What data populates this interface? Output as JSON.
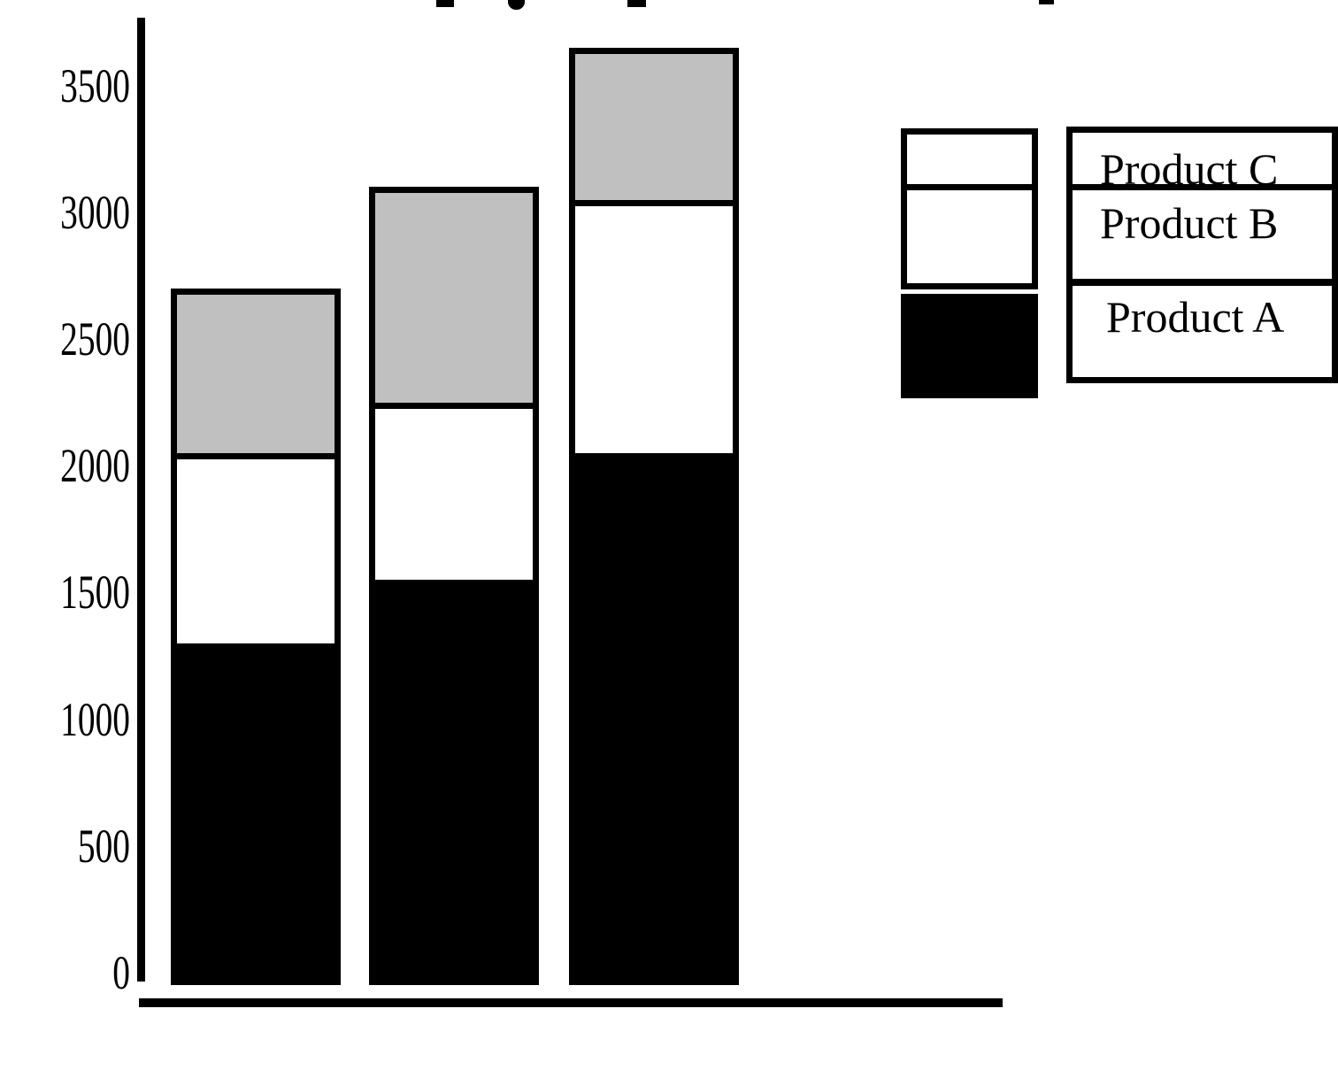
{
  "chart_data": {
    "type": "bar",
    "stacked": true,
    "title": "",
    "xlabel": "",
    "ylabel": "",
    "categories": [
      "",
      "",
      ""
    ],
    "series": [
      {
        "name": "Product A",
        "color": "#000000",
        "values": [
          1300,
          1550,
          2050
        ]
      },
      {
        "name": "Product B",
        "color": "#ffffff",
        "values": [
          750,
          700,
          1000
        ]
      },
      {
        "name": "Product C",
        "color": "#c0c0c0",
        "values": [
          650,
          850,
          600
        ]
      }
    ],
    "totals": [
      2700,
      3100,
      3650
    ],
    "yticks": [
      3500,
      3000,
      2500,
      2000,
      1500,
      1000,
      500,
      0
    ],
    "ylim": [
      0,
      3650
    ],
    "grid": false,
    "legend_position": "right",
    "legend": [
      "Product C",
      "Product B",
      "Product A"
    ],
    "axis_color": "#000000"
  }
}
